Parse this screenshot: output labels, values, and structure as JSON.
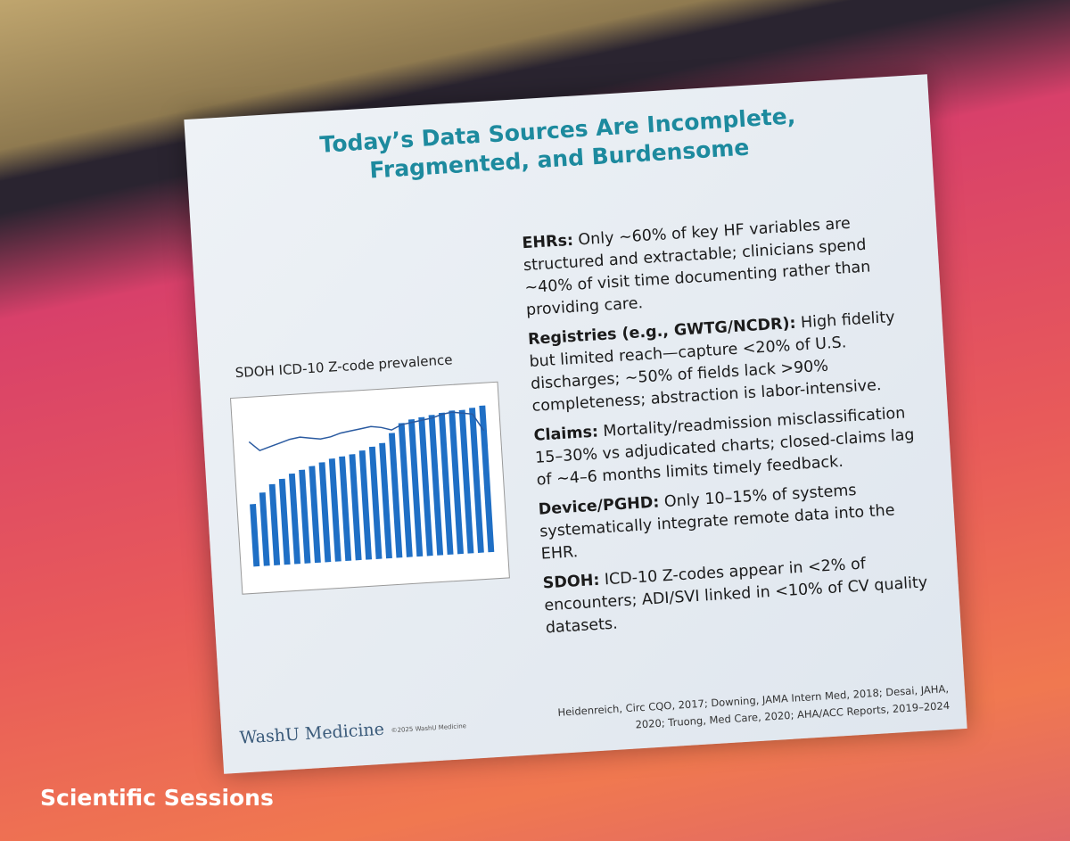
{
  "slide": {
    "title": [
      "Today’s Data Sources Are Incomplete,",
      "Fragmented, and Burdensome"
    ],
    "bullets": [
      {
        "label": "EHRs:",
        "text": " Only ~60% of key HF variables are structured and extractable; clinicians spend ~40% of visit time documenting rather than providing care."
      },
      {
        "label": "Registries (e.g., GWTG/NCDR):",
        "text": " High fidelity but limited reach—capture <20% of U.S. discharges; ~50% of fields lack >90% completeness; abstraction is labor-intensive."
      },
      {
        "label": "Claims:",
        "text": " Mortality/readmission misclassification 15–30% vs adjudicated charts; closed-claims lag of ~4–6 months limits timely feedback."
      },
      {
        "label": "Device/PGHD:",
        "text": " Only 10–15% of systems systematically integrate remote data into the EHR."
      },
      {
        "label": "SDOH:",
        "text": " ICD-10 Z-codes appear in <2% of encounters; ADI/SVI linked in <10% of CV quality datasets."
      }
    ],
    "logo": "WashU Medicine",
    "copyright": "©2025 WashU Medicine",
    "references": "Heidenreich, Circ CQO, 2017; Downing, JAMA Intern Med, 2018; Desai, JAHA, 2020; Truong, Med Care, 2020; AHA/ACC Reports, 2019–2024"
  },
  "chart_data": {
    "type": "bar",
    "title": "SDOH ICD-10 Z-code prevalence",
    "ylim": [
      0,
      100
    ],
    "series": [
      {
        "type": "bar",
        "color": "#1f6fc5",
        "values": [
          40,
          47,
          52,
          55,
          58,
          60,
          62,
          64,
          66,
          67,
          68,
          70,
          72,
          74,
          80,
          86,
          88,
          89,
          90,
          91,
          92,
          92,
          93,
          94
        ]
      },
      {
        "type": "line",
        "color": "#2a5aa0",
        "values": [
          80,
          74,
          76,
          78,
          80,
          81,
          80,
          79,
          80,
          82,
          83,
          84,
          85,
          84,
          82,
          85,
          86,
          87,
          88,
          90,
          91,
          90,
          89,
          78
        ]
      }
    ]
  },
  "footer": {
    "event": "Scientific Sessions"
  }
}
